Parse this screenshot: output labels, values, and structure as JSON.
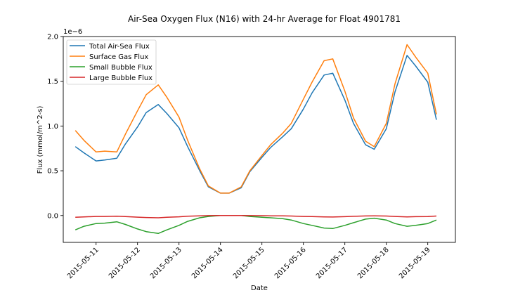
{
  "chart_data": {
    "type": "line",
    "title": "Air-Sea Oxygen Flux (N16) with 24-hr Average for Float 4901781",
    "xlabel": "Date",
    "ylabel": "Flux (mmol/m^2-s)",
    "y_offset_label": "1e−6",
    "y_scale": 1e-06,
    "ylim": [
      -0.3,
      2.0
    ],
    "xlim": [
      "2015-05-10 05:00",
      "2015-05-19 16:00"
    ],
    "y_ticks": [
      0.0,
      0.5,
      1.0,
      1.5,
      2.0
    ],
    "y_tick_labels": [
      "0.0",
      "0.5",
      "1.0",
      "1.5",
      "2.0"
    ],
    "x_ticks": [
      "2015-05-11",
      "2015-05-12",
      "2015-05-13",
      "2015-05-14",
      "2015-05-15",
      "2015-05-16",
      "2015-05-17",
      "2015-05-18",
      "2015-05-19"
    ],
    "x_tick_labels": [
      "2015-05-11",
      "2015-05-12",
      "2015-05-13",
      "2015-05-14",
      "2015-05-15",
      "2015-05-16",
      "2015-05-17",
      "2015-05-18",
      "2015-05-19"
    ],
    "grid": false,
    "legend_position": "upper-left",
    "x": [
      "2015-05-10 12:00",
      "2015-05-10 17:00",
      "2015-05-11 00:00",
      "2015-05-11 05:00",
      "2015-05-11 12:00",
      "2015-05-11 17:00",
      "2015-05-12 00:00",
      "2015-05-12 05:00",
      "2015-05-12 12:00",
      "2015-05-12 17:00",
      "2015-05-13 00:00",
      "2015-05-13 05:00",
      "2015-05-13 12:00",
      "2015-05-13 17:00",
      "2015-05-14 00:00",
      "2015-05-14 05:00",
      "2015-05-14 12:00",
      "2015-05-14 17:00",
      "2015-05-15 00:00",
      "2015-05-15 05:00",
      "2015-05-15 12:00",
      "2015-05-15 17:00",
      "2015-05-16 00:00",
      "2015-05-16 05:00",
      "2015-05-16 12:00",
      "2015-05-16 17:00",
      "2015-05-17 00:00",
      "2015-05-17 05:00",
      "2015-05-17 12:00",
      "2015-05-17 17:00",
      "2015-05-18 00:00",
      "2015-05-18 05:00",
      "2015-05-18 12:00",
      "2015-05-18 17:00",
      "2015-05-19 00:00",
      "2015-05-19 05:00"
    ],
    "series": [
      {
        "name": "Total Air-Sea Flux",
        "color": "#1f77b4",
        "values": [
          0.77,
          0.7,
          0.61,
          0.62,
          0.64,
          0.8,
          0.99,
          1.15,
          1.24,
          1.14,
          0.98,
          0.77,
          0.5,
          0.32,
          0.25,
          0.25,
          0.31,
          0.49,
          0.65,
          0.76,
          0.88,
          0.97,
          1.19,
          1.37,
          1.57,
          1.59,
          1.29,
          1.03,
          0.79,
          0.74,
          0.97,
          1.38,
          1.79,
          1.67,
          1.49,
          1.07
        ]
      },
      {
        "name": "Surface Gas Flux",
        "color": "#ff7f0e",
        "values": [
          0.95,
          0.84,
          0.71,
          0.72,
          0.71,
          0.91,
          1.17,
          1.35,
          1.46,
          1.32,
          1.1,
          0.84,
          0.52,
          0.33,
          0.25,
          0.25,
          0.32,
          0.5,
          0.67,
          0.79,
          0.92,
          1.03,
          1.3,
          1.49,
          1.73,
          1.75,
          1.39,
          1.09,
          0.83,
          0.77,
          1.03,
          1.47,
          1.91,
          1.77,
          1.59,
          1.13
        ]
      },
      {
        "name": "Small Bubble Flux",
        "color": "#2ca02c",
        "values": [
          -0.16,
          -0.12,
          -0.09,
          -0.085,
          -0.07,
          -0.1,
          -0.15,
          -0.18,
          -0.2,
          -0.16,
          -0.11,
          -0.065,
          -0.025,
          -0.01,
          0.0,
          0.0,
          0.0,
          -0.01,
          -0.02,
          -0.025,
          -0.035,
          -0.05,
          -0.09,
          -0.11,
          -0.14,
          -0.145,
          -0.11,
          -0.08,
          -0.04,
          -0.03,
          -0.05,
          -0.09,
          -0.12,
          -0.11,
          -0.09,
          -0.05
        ]
      },
      {
        "name": "Large Bubble Flux",
        "color": "#d62728",
        "values": [
          -0.02,
          -0.015,
          -0.01,
          -0.01,
          -0.008,
          -0.012,
          -0.018,
          -0.022,
          -0.025,
          -0.02,
          -0.014,
          -0.008,
          -0.003,
          -0.001,
          0.0,
          0.0,
          0.0,
          -0.001,
          -0.002,
          -0.003,
          -0.004,
          -0.006,
          -0.01,
          -0.012,
          -0.016,
          -0.017,
          -0.013,
          -0.009,
          -0.005,
          -0.004,
          -0.006,
          -0.01,
          -0.015,
          -0.013,
          -0.011,
          -0.006
        ]
      }
    ]
  }
}
